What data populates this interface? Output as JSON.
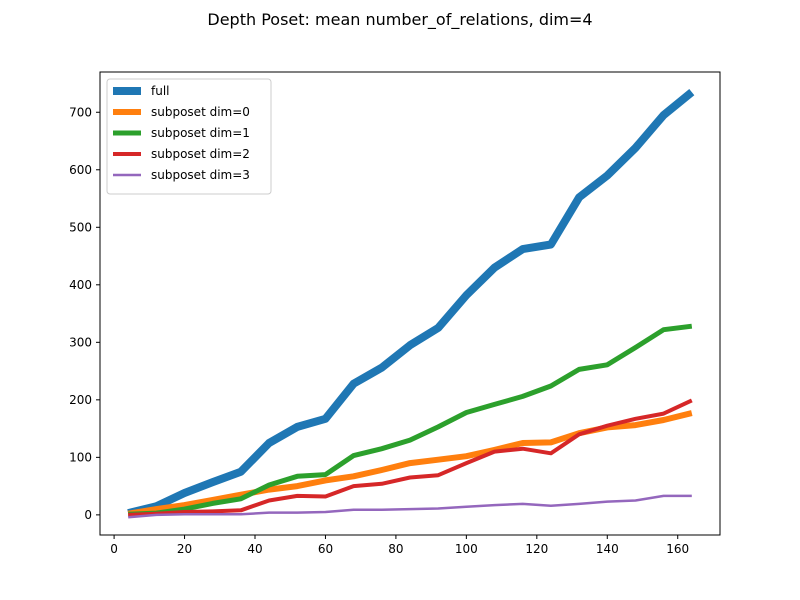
{
  "chart_data": {
    "type": "line",
    "title": "Depth Poset: mean number_of_relations, dim=4",
    "xlabel": "",
    "ylabel": "",
    "xlim": [
      -4,
      172
    ],
    "ylim": [
      -35,
      770
    ],
    "xticks": [
      0,
      20,
      40,
      60,
      80,
      100,
      120,
      140,
      160
    ],
    "yticks": [
      0,
      100,
      200,
      300,
      400,
      500,
      600,
      700
    ],
    "grid": false,
    "legend_position": "top-left",
    "x": [
      4,
      12,
      20,
      28,
      36,
      44,
      52,
      60,
      68,
      76,
      84,
      92,
      100,
      108,
      116,
      124,
      132,
      140,
      148,
      156,
      164
    ],
    "series": [
      {
        "name": "full",
        "color": "#1f77b4",
        "width": 8,
        "values": [
          3,
          15,
          38,
          57,
          75,
          125,
          153,
          167,
          228,
          256,
          295,
          325,
          382,
          430,
          462,
          470,
          552,
          590,
          638,
          695,
          735
        ]
      },
      {
        "name": "subposet dim=0",
        "color": "#ff7f0e",
        "width": 6,
        "values": [
          2,
          10,
          17,
          26,
          35,
          44,
          50,
          60,
          67,
          78,
          90,
          96,
          102,
          113,
          125,
          126,
          142,
          152,
          156,
          165,
          177
        ]
      },
      {
        "name": "subposet dim=1",
        "color": "#2ca02c",
        "width": 5,
        "values": [
          1,
          3,
          10,
          20,
          28,
          52,
          67,
          70,
          103,
          115,
          130,
          153,
          178,
          192,
          206,
          224,
          253,
          261,
          291,
          322,
          328
        ]
      },
      {
        "name": "subposet dim=2",
        "color": "#d62728",
        "width": 4,
        "values": [
          0,
          2,
          5,
          6,
          8,
          25,
          33,
          32,
          50,
          54,
          65,
          69,
          90,
          110,
          115,
          107,
          140,
          155,
          167,
          176,
          199
        ]
      },
      {
        "name": "subposet dim=3",
        "color": "#9467bd",
        "width": 2.5,
        "values": [
          -4,
          0,
          1,
          1,
          1,
          4,
          4,
          5,
          9,
          9,
          10,
          11,
          14,
          17,
          19,
          16,
          19,
          23,
          25,
          33,
          33
        ]
      }
    ]
  }
}
